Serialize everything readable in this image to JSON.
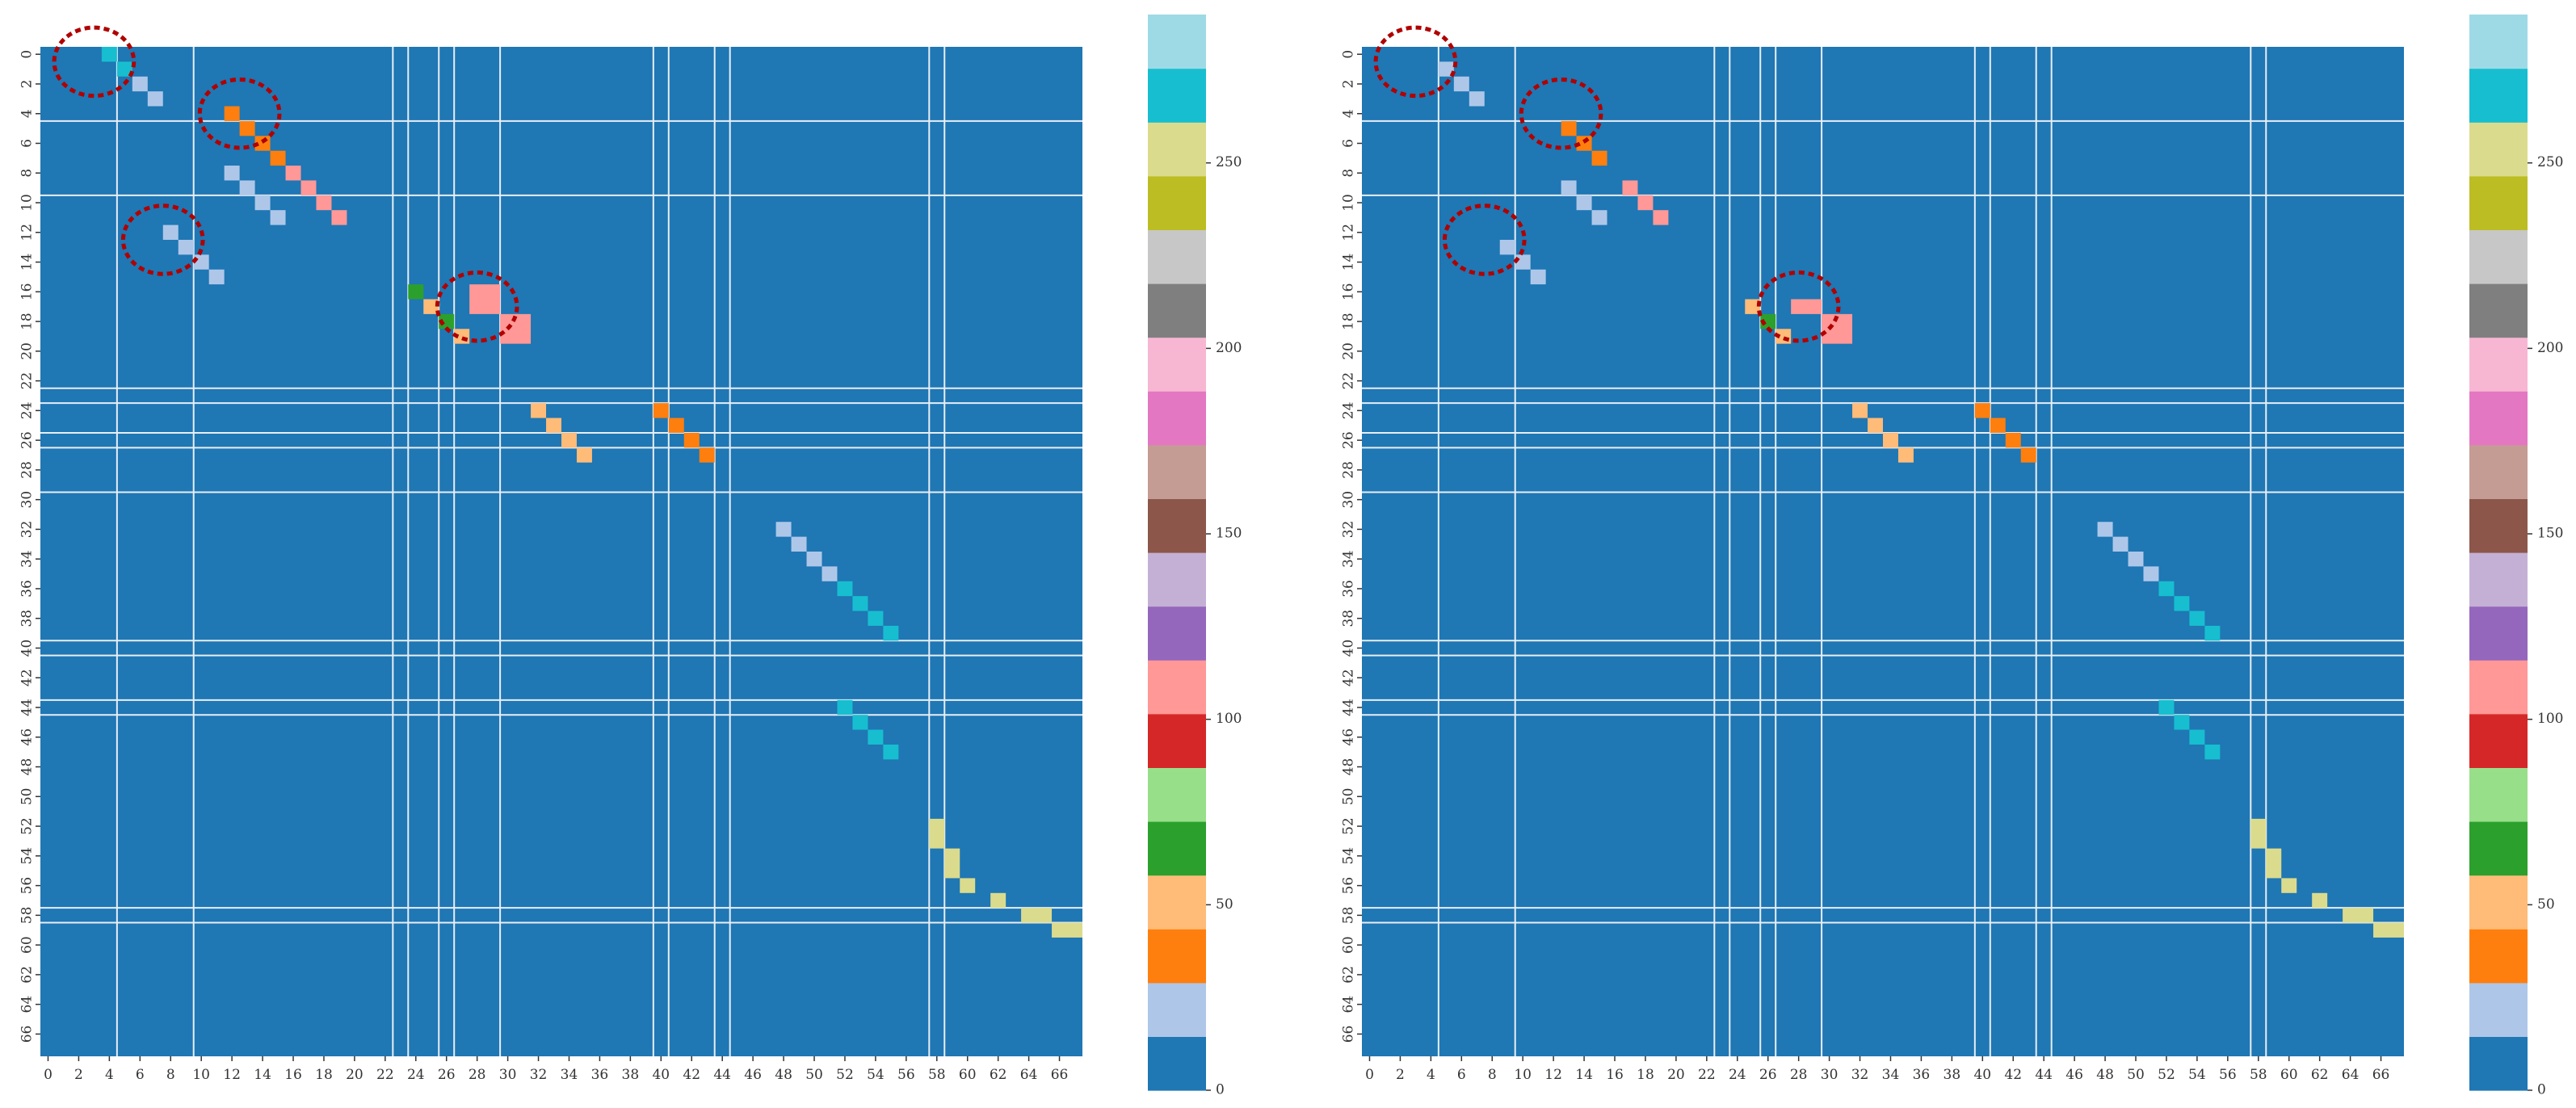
{
  "palette": {
    "background": "#1f77b4",
    "gridline": "#e8eef5",
    "highlight": "#b00000",
    "cmap": [
      "#1f77b4",
      "#aec7e8",
      "#ff7f0e",
      "#ffbb78",
      "#2ca02c",
      "#98df8a",
      "#d62728",
      "#ff9896",
      "#9467bd",
      "#c5b0d5",
      "#8c564b",
      "#c49c94",
      "#e377c2",
      "#f7b6d2",
      "#7f7f7f",
      "#c7c7c7",
      "#bcbd22",
      "#dbdb8d",
      "#17becf",
      "#9edae5"
    ]
  },
  "chart_data": [
    {
      "type": "heatmap",
      "size": 68,
      "x_tick_labels": [
        "0",
        "2",
        "4",
        "6",
        "8",
        "10",
        "12",
        "14",
        "16",
        "18",
        "20",
        "22",
        "24",
        "26",
        "28",
        "30",
        "32",
        "34",
        "36",
        "38",
        "40",
        "42",
        "44",
        "46",
        "48",
        "50",
        "52",
        "54",
        "56",
        "58",
        "60",
        "62",
        "64",
        "66"
      ],
      "y_tick_labels": [
        "0",
        "2",
        "4",
        "6",
        "8",
        "10",
        "12",
        "14",
        "16",
        "18",
        "20",
        "22",
        "24",
        "26",
        "28",
        "30",
        "32",
        "34",
        "36",
        "38",
        "40",
        "42",
        "44",
        "46",
        "48",
        "50",
        "52",
        "54",
        "56",
        "58",
        "60",
        "62",
        "64",
        "66"
      ],
      "gridlines": [
        5,
        10,
        23,
        24,
        26,
        27,
        30,
        40,
        41,
        44,
        45,
        58,
        59
      ],
      "cells": [
        {
          "row": 0,
          "col": 4,
          "w": 1,
          "h": 1,
          "value": 270
        },
        {
          "row": 1,
          "col": 5,
          "w": 1,
          "h": 1,
          "value": 270
        },
        {
          "row": 2,
          "col": 6,
          "w": 1,
          "h": 1,
          "value": 20
        },
        {
          "row": 3,
          "col": 7,
          "w": 1,
          "h": 1,
          "value": 20
        },
        {
          "row": 4,
          "col": 12,
          "w": 1,
          "h": 1,
          "value": 40
        },
        {
          "row": 5,
          "col": 13,
          "w": 1,
          "h": 1,
          "value": 40
        },
        {
          "row": 6,
          "col": 14,
          "w": 1,
          "h": 1,
          "value": 40
        },
        {
          "row": 7,
          "col": 15,
          "w": 1,
          "h": 1,
          "value": 40
        },
        {
          "row": 8,
          "col": 12,
          "w": 1,
          "h": 1,
          "value": 20
        },
        {
          "row": 9,
          "col": 13,
          "w": 1,
          "h": 1,
          "value": 20
        },
        {
          "row": 10,
          "col": 14,
          "w": 1,
          "h": 1,
          "value": 20
        },
        {
          "row": 11,
          "col": 15,
          "w": 1,
          "h": 1,
          "value": 20
        },
        {
          "row": 8,
          "col": 16,
          "w": 1,
          "h": 1,
          "value": 110
        },
        {
          "row": 9,
          "col": 17,
          "w": 1,
          "h": 1,
          "value": 110
        },
        {
          "row": 10,
          "col": 18,
          "w": 1,
          "h": 1,
          "value": 110
        },
        {
          "row": 11,
          "col": 19,
          "w": 1,
          "h": 1,
          "value": 110
        },
        {
          "row": 12,
          "col": 8,
          "w": 1,
          "h": 1,
          "value": 20
        },
        {
          "row": 13,
          "col": 9,
          "w": 1,
          "h": 1,
          "value": 20
        },
        {
          "row": 14,
          "col": 10,
          "w": 1,
          "h": 1,
          "value": 20
        },
        {
          "row": 15,
          "col": 11,
          "w": 1,
          "h": 1,
          "value": 20
        },
        {
          "row": 16,
          "col": 24,
          "w": 1,
          "h": 1,
          "value": 70
        },
        {
          "row": 17,
          "col": 25,
          "w": 1,
          "h": 1,
          "value": 50
        },
        {
          "row": 18,
          "col": 26,
          "w": 1,
          "h": 1,
          "value": 70
        },
        {
          "row": 19,
          "col": 27,
          "w": 1,
          "h": 1,
          "value": 50
        },
        {
          "row": 16,
          "col": 28,
          "w": 2,
          "h": 2,
          "value": 110
        },
        {
          "row": 18,
          "col": 30,
          "w": 2,
          "h": 2,
          "value": 110
        },
        {
          "row": 24,
          "col": 32,
          "w": 1,
          "h": 1,
          "value": 50
        },
        {
          "row": 25,
          "col": 33,
          "w": 1,
          "h": 1,
          "value": 50
        },
        {
          "row": 26,
          "col": 34,
          "w": 1,
          "h": 1,
          "value": 50
        },
        {
          "row": 27,
          "col": 35,
          "w": 1,
          "h": 1,
          "value": 50
        },
        {
          "row": 24,
          "col": 40,
          "w": 1,
          "h": 1,
          "value": 40
        },
        {
          "row": 25,
          "col": 41,
          "w": 1,
          "h": 1,
          "value": 40
        },
        {
          "row": 26,
          "col": 42,
          "w": 1,
          "h": 1,
          "value": 40
        },
        {
          "row": 27,
          "col": 43,
          "w": 1,
          "h": 1,
          "value": 40
        },
        {
          "row": 32,
          "col": 48,
          "w": 1,
          "h": 1,
          "value": 20
        },
        {
          "row": 33,
          "col": 49,
          "w": 1,
          "h": 1,
          "value": 20
        },
        {
          "row": 34,
          "col": 50,
          "w": 1,
          "h": 1,
          "value": 20
        },
        {
          "row": 35,
          "col": 51,
          "w": 1,
          "h": 1,
          "value": 20
        },
        {
          "row": 36,
          "col": 52,
          "w": 1,
          "h": 1,
          "value": 270
        },
        {
          "row": 37,
          "col": 53,
          "w": 1,
          "h": 1,
          "value": 270
        },
        {
          "row": 38,
          "col": 54,
          "w": 1,
          "h": 1,
          "value": 270
        },
        {
          "row": 39,
          "col": 55,
          "w": 1,
          "h": 1,
          "value": 270
        },
        {
          "row": 44,
          "col": 52,
          "w": 1,
          "h": 1,
          "value": 270
        },
        {
          "row": 45,
          "col": 53,
          "w": 1,
          "h": 1,
          "value": 270
        },
        {
          "row": 46,
          "col": 54,
          "w": 1,
          "h": 1,
          "value": 270
        },
        {
          "row": 47,
          "col": 55,
          "w": 1,
          "h": 1,
          "value": 270
        },
        {
          "row": 52,
          "col": 58,
          "w": 1,
          "h": 2,
          "value": 250
        },
        {
          "row": 54,
          "col": 59,
          "w": 1,
          "h": 2,
          "value": 260
        },
        {
          "row": 56,
          "col": 60,
          "w": 1,
          "h": 1,
          "value": 250
        },
        {
          "row": 57,
          "col": 62,
          "w": 1,
          "h": 1,
          "value": 260
        },
        {
          "row": 58,
          "col": 64,
          "w": 2,
          "h": 1,
          "value": 250
        },
        {
          "row": 59,
          "col": 66,
          "w": 2,
          "h": 1,
          "value": 260
        }
      ],
      "annotations": [
        {
          "row": 0.5,
          "col": 3.0
        },
        {
          "row": 4.0,
          "col": 12.5
        },
        {
          "row": 12.5,
          "col": 7.5
        },
        {
          "row": 17.0,
          "col": 28.0
        }
      ]
    },
    {
      "type": "heatmap",
      "size": 68,
      "x_tick_labels": [
        "0",
        "2",
        "4",
        "6",
        "8",
        "10",
        "12",
        "14",
        "16",
        "18",
        "20",
        "22",
        "24",
        "26",
        "28",
        "30",
        "32",
        "34",
        "36",
        "38",
        "40",
        "42",
        "44",
        "46",
        "48",
        "50",
        "52",
        "54",
        "56",
        "58",
        "60",
        "62",
        "64",
        "66"
      ],
      "y_tick_labels": [
        "0",
        "2",
        "4",
        "6",
        "8",
        "10",
        "12",
        "14",
        "16",
        "18",
        "20",
        "22",
        "24",
        "26",
        "28",
        "30",
        "32",
        "34",
        "36",
        "38",
        "40",
        "42",
        "44",
        "46",
        "48",
        "50",
        "52",
        "54",
        "56",
        "58",
        "60",
        "62",
        "64",
        "66"
      ],
      "gridlines": [
        5,
        10,
        23,
        24,
        26,
        27,
        30,
        40,
        41,
        44,
        45,
        58,
        59
      ],
      "cells": [
        {
          "row": 1,
          "col": 5,
          "w": 1,
          "h": 1,
          "value": 20
        },
        {
          "row": 2,
          "col": 6,
          "w": 1,
          "h": 1,
          "value": 20
        },
        {
          "row": 3,
          "col": 7,
          "w": 1,
          "h": 1,
          "value": 20
        },
        {
          "row": 5,
          "col": 13,
          "w": 1,
          "h": 1,
          "value": 40
        },
        {
          "row": 6,
          "col": 14,
          "w": 1,
          "h": 1,
          "value": 40
        },
        {
          "row": 7,
          "col": 15,
          "w": 1,
          "h": 1,
          "value": 40
        },
        {
          "row": 9,
          "col": 13,
          "w": 1,
          "h": 1,
          "value": 20
        },
        {
          "row": 10,
          "col": 14,
          "w": 1,
          "h": 1,
          "value": 20
        },
        {
          "row": 11,
          "col": 15,
          "w": 1,
          "h": 1,
          "value": 20
        },
        {
          "row": 9,
          "col": 17,
          "w": 1,
          "h": 1,
          "value": 110
        },
        {
          "row": 10,
          "col": 18,
          "w": 1,
          "h": 1,
          "value": 110
        },
        {
          "row": 11,
          "col": 19,
          "w": 1,
          "h": 1,
          "value": 110
        },
        {
          "row": 13,
          "col": 9,
          "w": 1,
          "h": 1,
          "value": 20
        },
        {
          "row": 14,
          "col": 10,
          "w": 1,
          "h": 1,
          "value": 20
        },
        {
          "row": 15,
          "col": 11,
          "w": 1,
          "h": 1,
          "value": 20
        },
        {
          "row": 17,
          "col": 25,
          "w": 1,
          "h": 1,
          "value": 50
        },
        {
          "row": 18,
          "col": 26,
          "w": 1,
          "h": 1,
          "value": 70
        },
        {
          "row": 19,
          "col": 27,
          "w": 1,
          "h": 1,
          "value": 50
        },
        {
          "row": 17,
          "col": 28,
          "w": 2,
          "h": 1,
          "value": 110
        },
        {
          "row": 18,
          "col": 30,
          "w": 2,
          "h": 2,
          "value": 110
        },
        {
          "row": 24,
          "col": 32,
          "w": 1,
          "h": 1,
          "value": 50
        },
        {
          "row": 25,
          "col": 33,
          "w": 1,
          "h": 1,
          "value": 50
        },
        {
          "row": 26,
          "col": 34,
          "w": 1,
          "h": 1,
          "value": 50
        },
        {
          "row": 27,
          "col": 35,
          "w": 1,
          "h": 1,
          "value": 50
        },
        {
          "row": 24,
          "col": 40,
          "w": 1,
          "h": 1,
          "value": 40
        },
        {
          "row": 25,
          "col": 41,
          "w": 1,
          "h": 1,
          "value": 40
        },
        {
          "row": 26,
          "col": 42,
          "w": 1,
          "h": 1,
          "value": 40
        },
        {
          "row": 27,
          "col": 43,
          "w": 1,
          "h": 1,
          "value": 40
        },
        {
          "row": 32,
          "col": 48,
          "w": 1,
          "h": 1,
          "value": 20
        },
        {
          "row": 33,
          "col": 49,
          "w": 1,
          "h": 1,
          "value": 20
        },
        {
          "row": 34,
          "col": 50,
          "w": 1,
          "h": 1,
          "value": 20
        },
        {
          "row": 35,
          "col": 51,
          "w": 1,
          "h": 1,
          "value": 20
        },
        {
          "row": 36,
          "col": 52,
          "w": 1,
          "h": 1,
          "value": 270
        },
        {
          "row": 37,
          "col": 53,
          "w": 1,
          "h": 1,
          "value": 270
        },
        {
          "row": 38,
          "col": 54,
          "w": 1,
          "h": 1,
          "value": 270
        },
        {
          "row": 39,
          "col": 55,
          "w": 1,
          "h": 1,
          "value": 270
        },
        {
          "row": 44,
          "col": 52,
          "w": 1,
          "h": 1,
          "value": 270
        },
        {
          "row": 45,
          "col": 53,
          "w": 1,
          "h": 1,
          "value": 270
        },
        {
          "row": 46,
          "col": 54,
          "w": 1,
          "h": 1,
          "value": 270
        },
        {
          "row": 47,
          "col": 55,
          "w": 1,
          "h": 1,
          "value": 270
        },
        {
          "row": 52,
          "col": 58,
          "w": 1,
          "h": 2,
          "value": 250
        },
        {
          "row": 54,
          "col": 59,
          "w": 1,
          "h": 2,
          "value": 260
        },
        {
          "row": 56,
          "col": 60,
          "w": 1,
          "h": 1,
          "value": 250
        },
        {
          "row": 57,
          "col": 62,
          "w": 1,
          "h": 1,
          "value": 260
        },
        {
          "row": 58,
          "col": 64,
          "w": 2,
          "h": 1,
          "value": 250
        },
        {
          "row": 59,
          "col": 66,
          "w": 2,
          "h": 1,
          "value": 260
        }
      ],
      "annotations": [
        {
          "row": 0.5,
          "col": 3.0
        },
        {
          "row": 4.0,
          "col": 12.5
        },
        {
          "row": 12.5,
          "col": 7.5
        },
        {
          "row": 17.0,
          "col": 28.0
        }
      ]
    }
  ],
  "colorbars": [
    {
      "vmin": 0,
      "vmax": 290,
      "tick_values": [
        0,
        50,
        100,
        150,
        200,
        250
      ],
      "tick_labels": [
        "0",
        "50",
        "100",
        "150",
        "200",
        "250"
      ]
    },
    {
      "vmin": 0,
      "vmax": 290,
      "tick_values": [
        0,
        50,
        100,
        150,
        200,
        250
      ],
      "tick_labels": [
        "0",
        "50",
        "100",
        "150",
        "200",
        "250"
      ]
    }
  ]
}
